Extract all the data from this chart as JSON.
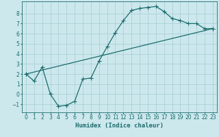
{
  "xlabel": "Humidex (Indice chaleur)",
  "background_color": "#cce8ed",
  "grid_color": "#aad0d8",
  "line_color": "#1a6b6b",
  "xlim": [
    -0.5,
    23.5
  ],
  "ylim": [
    -1.8,
    9.2
  ],
  "line1_x": [
    0,
    1,
    2,
    3,
    4,
    5,
    6,
    7,
    8,
    9,
    10,
    11,
    12,
    13,
    14,
    15,
    16,
    17,
    18,
    19,
    20,
    21,
    22,
    23
  ],
  "line1_y": [
    2.0,
    1.3,
    2.7,
    0.0,
    -1.2,
    -1.1,
    -0.7,
    1.5,
    1.6,
    3.3,
    4.7,
    6.1,
    7.3,
    8.3,
    8.5,
    8.6,
    8.7,
    8.2,
    7.5,
    7.3,
    7.0,
    7.0,
    6.5,
    6.5
  ],
  "line2_x": [
    0,
    23
  ],
  "line2_y": [
    2.0,
    6.5
  ],
  "yticks": [
    -1,
    0,
    1,
    2,
    3,
    4,
    5,
    6,
    7,
    8
  ],
  "xticks": [
    0,
    1,
    2,
    3,
    4,
    5,
    6,
    7,
    8,
    9,
    10,
    11,
    12,
    13,
    14,
    15,
    16,
    17,
    18,
    19,
    20,
    21,
    22,
    23
  ],
  "tick_labelsize": 5.5,
  "xlabel_fontsize": 6.5
}
